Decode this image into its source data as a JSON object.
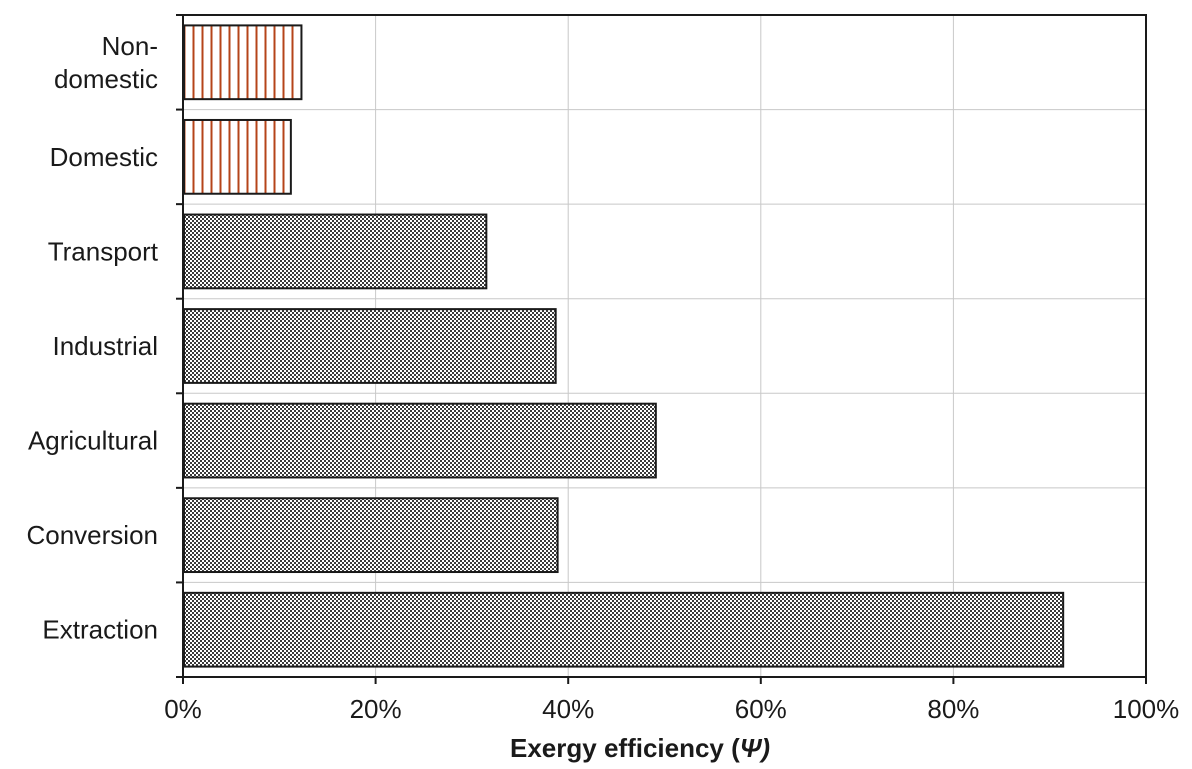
{
  "chart_data": {
    "type": "bar",
    "orientation": "horizontal",
    "title": "",
    "xlabel": "Exergy efficiency (",
    "xlabel_symbol": "Ψ)",
    "ylabel": "",
    "xlim": [
      0,
      100
    ],
    "x_ticks": [
      "0%",
      "20%",
      "40%",
      "60%",
      "80%",
      "100%"
    ],
    "grid": true,
    "legend": "none",
    "categories": [
      [
        "Non-",
        "domestic"
      ],
      [
        "Domestic"
      ],
      [
        "Transport"
      ],
      [
        "Industrial"
      ],
      [
        "Agricultural"
      ],
      [
        "Conversion"
      ],
      [
        "Extraction"
      ]
    ],
    "values": [
      12.3,
      11.2,
      31.5,
      38.7,
      49.1,
      38.9,
      91.4
    ],
    "unit": "%",
    "bar_styles": [
      "stripes",
      "stripes",
      "dots",
      "dots",
      "dots",
      "dots",
      "dots"
    ],
    "colors": {
      "stripe_fill": "#ffffff",
      "stripe_line": "#b5441a",
      "dot_fill": "#ffffff",
      "dot_ink": "#3a3a3a",
      "bar_border": "#1a1a1a",
      "grid": "#c8c8c8",
      "axis": "#1a1a1a"
    }
  }
}
